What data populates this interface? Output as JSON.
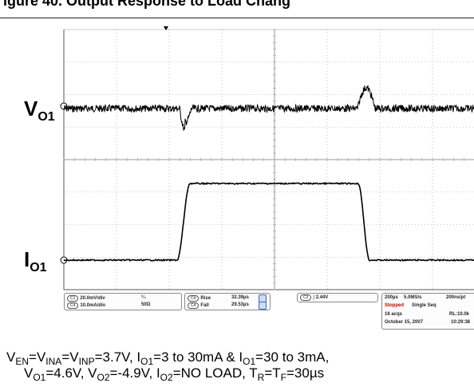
{
  "figure": {
    "caption_top_fragment": "igure 40. Output Response to Load Chang"
  },
  "channels": {
    "vo1": {
      "main": "V",
      "sub": "O1"
    },
    "io1": {
      "main": "I",
      "sub": "O1"
    }
  },
  "status_bar": {
    "c1_setting": "20.0mV/div",
    "c4_setting": "10.0mA/div",
    "bandwidth_symbol": "ᵇ/ᵥ",
    "impedance": "50Ω",
    "rise_label": "Rise",
    "rise_value": "32.39µs",
    "fall_label": "Fall",
    "fall_value": "29.53µs",
    "trigger_label": "C3",
    "trigger_level": "2.44V",
    "timebase": "200µs",
    "sample_rate": "5.0MS/s",
    "sample_interval": "200ns/pt",
    "state": "Stopped",
    "mode": "Single Seq",
    "acqs": "16 acqs",
    "record_length": "RL:10.0k",
    "date": "October 15, 2007",
    "time": "10:29:38"
  },
  "conditions": {
    "line1": [
      {
        "t": "V"
      },
      {
        "s": "EN"
      },
      {
        "t": "=V"
      },
      {
        "s": "INA"
      },
      {
        "t": "=V"
      },
      {
        "s": "INP"
      },
      {
        "t": "=3.7V, I"
      },
      {
        "s": "O1"
      },
      {
        "t": "=3 to 30mA & I"
      },
      {
        "s": "O1"
      },
      {
        "t": "=30 to 3mA,"
      }
    ],
    "line2": [
      {
        "t": "V"
      },
      {
        "s": "O1"
      },
      {
        "t": "=4.6V, V"
      },
      {
        "s": "O2"
      },
      {
        "t": "=-4.9V, I"
      },
      {
        "s": "O2"
      },
      {
        "t": "=NO LOAD, T"
      },
      {
        "s": "R"
      },
      {
        "t": "=T"
      },
      {
        "s": "F"
      },
      {
        "t": "=30µs"
      }
    ]
  },
  "colors": {
    "trace": "#000000",
    "grid": "#9a9a9a",
    "stopped": "#c00000"
  }
}
